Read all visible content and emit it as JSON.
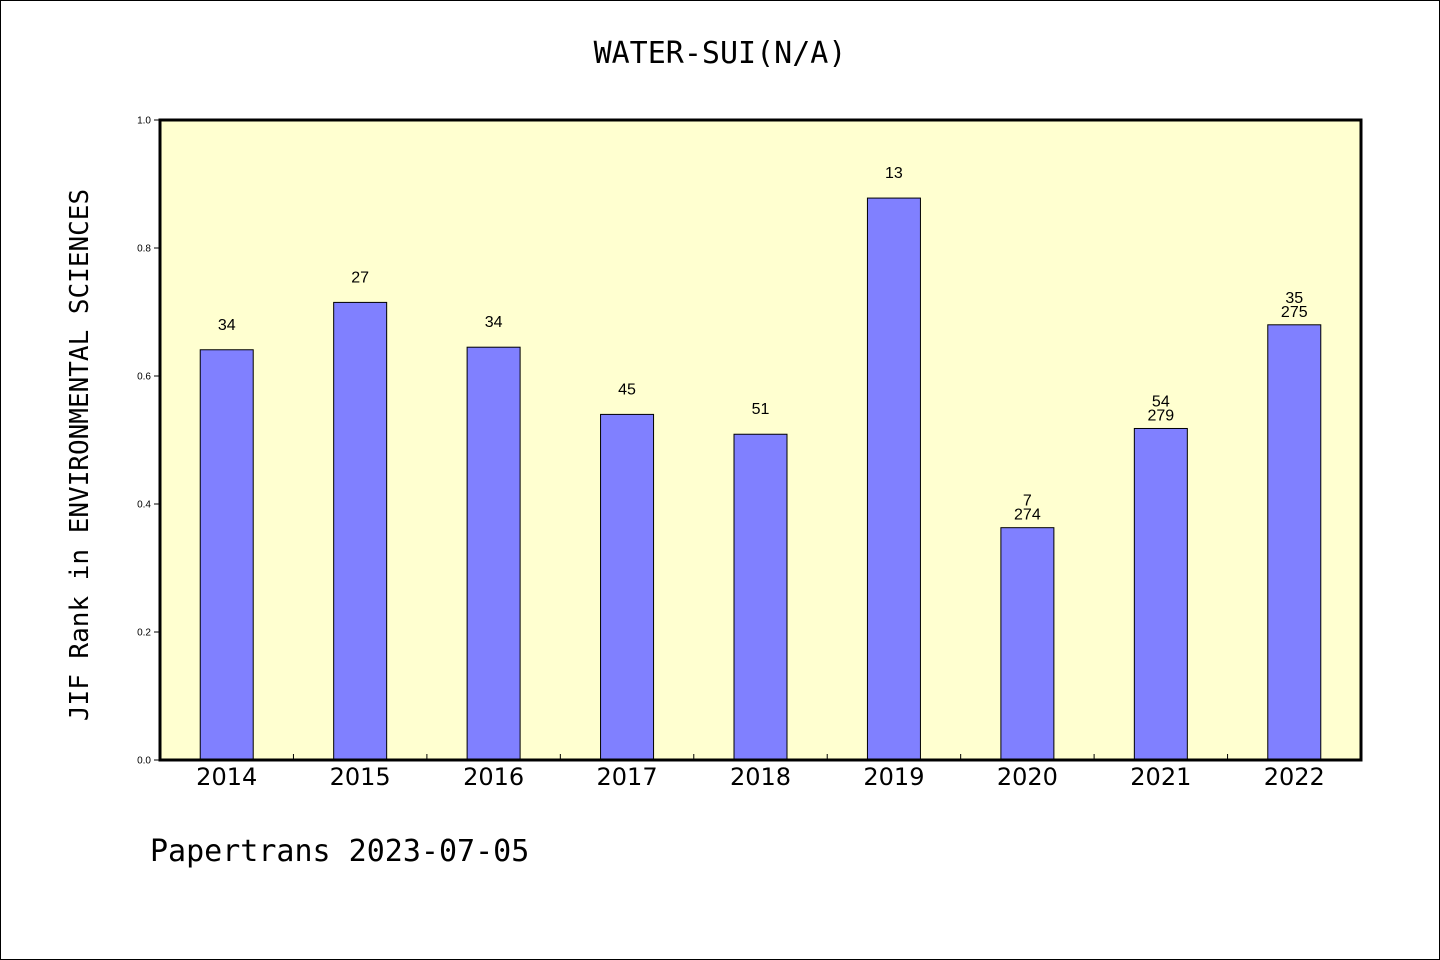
{
  "chart_data": {
    "type": "bar",
    "title": "WATER-SUI(N/A)",
    "xlabel": "",
    "ylabel": "JIF Rank in ENVIRONMENTAL SCIENCES",
    "ylim": [
      0,
      1.0
    ],
    "yticks": [
      "0.0",
      "0.2",
      "0.4",
      "0.6",
      "0.8",
      "1.0"
    ],
    "categories": [
      "2014",
      "2015",
      "2016",
      "2017",
      "2018",
      "2019",
      "2020",
      "2021",
      "2022"
    ],
    "values": [
      0.641,
      0.715,
      0.645,
      0.54,
      0.509,
      0.878,
      0.363,
      0.518,
      0.68
    ],
    "bar_labels": [
      [
        "34"
      ],
      [
        "27"
      ],
      [
        "34"
      ],
      [
        "45"
      ],
      [
        "51"
      ],
      [
        "13"
      ],
      [
        "7",
        "274"
      ],
      [
        "54",
        "279"
      ],
      [
        "35",
        "275"
      ]
    ],
    "grid": false,
    "colors": {
      "bar_fill": "#8080ff",
      "plot_bg": "#ffffd0",
      "axis": "#000000"
    }
  },
  "footer": {
    "text": "Papertrans 2023-07-05"
  }
}
